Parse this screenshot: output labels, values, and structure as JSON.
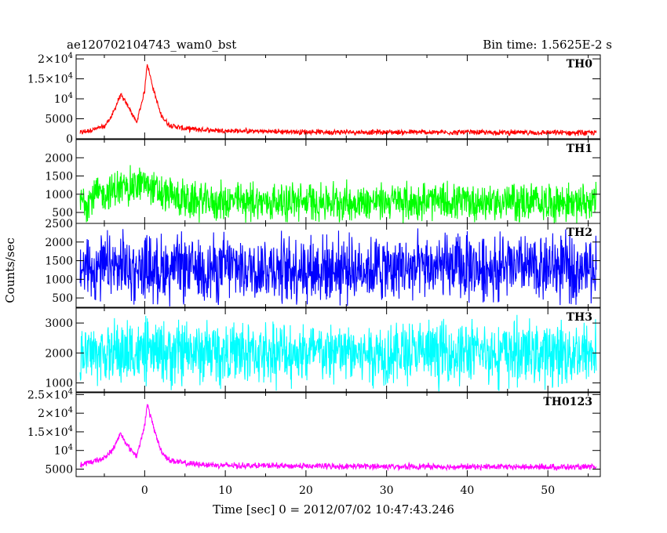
{
  "header": {
    "title": "ae120702104743_wam0_bst",
    "bin_time": "Bin time: 1.5625E-2 s"
  },
  "chart_data": {
    "type": "line",
    "ylabel": "Counts/sec",
    "xlabel": "Time [sec] 0 = 2012/07/02 10:47:43.246",
    "xlim": [
      -8.5,
      56.5
    ],
    "x_ticks": [
      0,
      10,
      20,
      30,
      40,
      50
    ],
    "x_range_data": [
      -8.0,
      56.0
    ],
    "panels": [
      {
        "name": "TH0",
        "color": "#ff0000",
        "ylim": [
          0,
          21000
        ],
        "y_ticks": [
          {
            "v": 0,
            "base": "0",
            "exp": ""
          },
          {
            "v": 5000,
            "base": "5000",
            "exp": ""
          },
          {
            "v": 10000,
            "base": "10",
            "exp": "4"
          },
          {
            "v": 15000,
            "base": "1.5×10",
            "exp": "4"
          },
          {
            "v": 20000,
            "base": "2×10",
            "exp": "4"
          }
        ],
        "profile_times": [
          -8,
          -5,
          -4,
          -3,
          -2,
          -1,
          0,
          0.3,
          1,
          2,
          3,
          5,
          10,
          20,
          56
        ],
        "profile_values": [
          1500,
          3000,
          6000,
          11000,
          8000,
          4000,
          12000,
          19000,
          13000,
          6000,
          3500,
          2500,
          2000,
          1700,
          1500
        ],
        "noise_amplitude": 800
      },
      {
        "name": "TH1",
        "color": "#00ff00",
        "ylim": [
          200,
          2500
        ],
        "y_ticks": [
          {
            "v": 500,
            "base": "500",
            "exp": ""
          },
          {
            "v": 1000,
            "base": "1000",
            "exp": ""
          },
          {
            "v": 1500,
            "base": "1500",
            "exp": ""
          },
          {
            "v": 2000,
            "base": "2000",
            "exp": ""
          }
        ],
        "profile_times": [
          -8,
          -4,
          0,
          2,
          6,
          56
        ],
        "profile_values": [
          800,
          1100,
          1300,
          1000,
          800,
          780
        ],
        "noise_amplitude": 650
      },
      {
        "name": "TH2",
        "color": "#0000ff",
        "ylim": [
          250,
          2500
        ],
        "y_ticks": [
          {
            "v": 500,
            "base": "500",
            "exp": ""
          },
          {
            "v": 1000,
            "base": "1000",
            "exp": ""
          },
          {
            "v": 1500,
            "base": "1500",
            "exp": ""
          },
          {
            "v": 2000,
            "base": "2000",
            "exp": ""
          },
          {
            "v": 2500,
            "base": "2500",
            "exp": ""
          }
        ],
        "profile_times": [
          -8,
          56
        ],
        "profile_values": [
          1300,
          1300
        ],
        "noise_amplitude": 1100
      },
      {
        "name": "TH3",
        "color": "#00ffff",
        "ylim": [
          700,
          3500
        ],
        "y_ticks": [
          {
            "v": 1000,
            "base": "1000",
            "exp": ""
          },
          {
            "v": 2000,
            "base": "2000",
            "exp": ""
          },
          {
            "v": 3000,
            "base": "3000",
            "exp": ""
          }
        ],
        "profile_times": [
          -8,
          56
        ],
        "profile_values": [
          2000,
          2000
        ],
        "noise_amplitude": 1300
      },
      {
        "name": "TH0123",
        "color": "#ff00ff",
        "ylim": [
          3000,
          25500
        ],
        "y_ticks": [
          {
            "v": 5000,
            "base": "5000",
            "exp": ""
          },
          {
            "v": 10000,
            "base": "10",
            "exp": "4"
          },
          {
            "v": 15000,
            "base": "1.5×10",
            "exp": "4"
          },
          {
            "v": 20000,
            "base": "2×10",
            "exp": "4"
          },
          {
            "v": 25000,
            "base": "2.5×10",
            "exp": "4"
          }
        ],
        "profile_times": [
          -8,
          -5,
          -4,
          -3,
          -2,
          -1,
          0,
          0.3,
          1,
          2,
          3,
          5,
          10,
          20,
          56
        ],
        "profile_values": [
          6000,
          8000,
          10000,
          14500,
          11000,
          8500,
          16500,
          22500,
          17000,
          10000,
          7500,
          6500,
          6000,
          5800,
          5500
        ],
        "noise_amplitude": 1000
      }
    ]
  }
}
